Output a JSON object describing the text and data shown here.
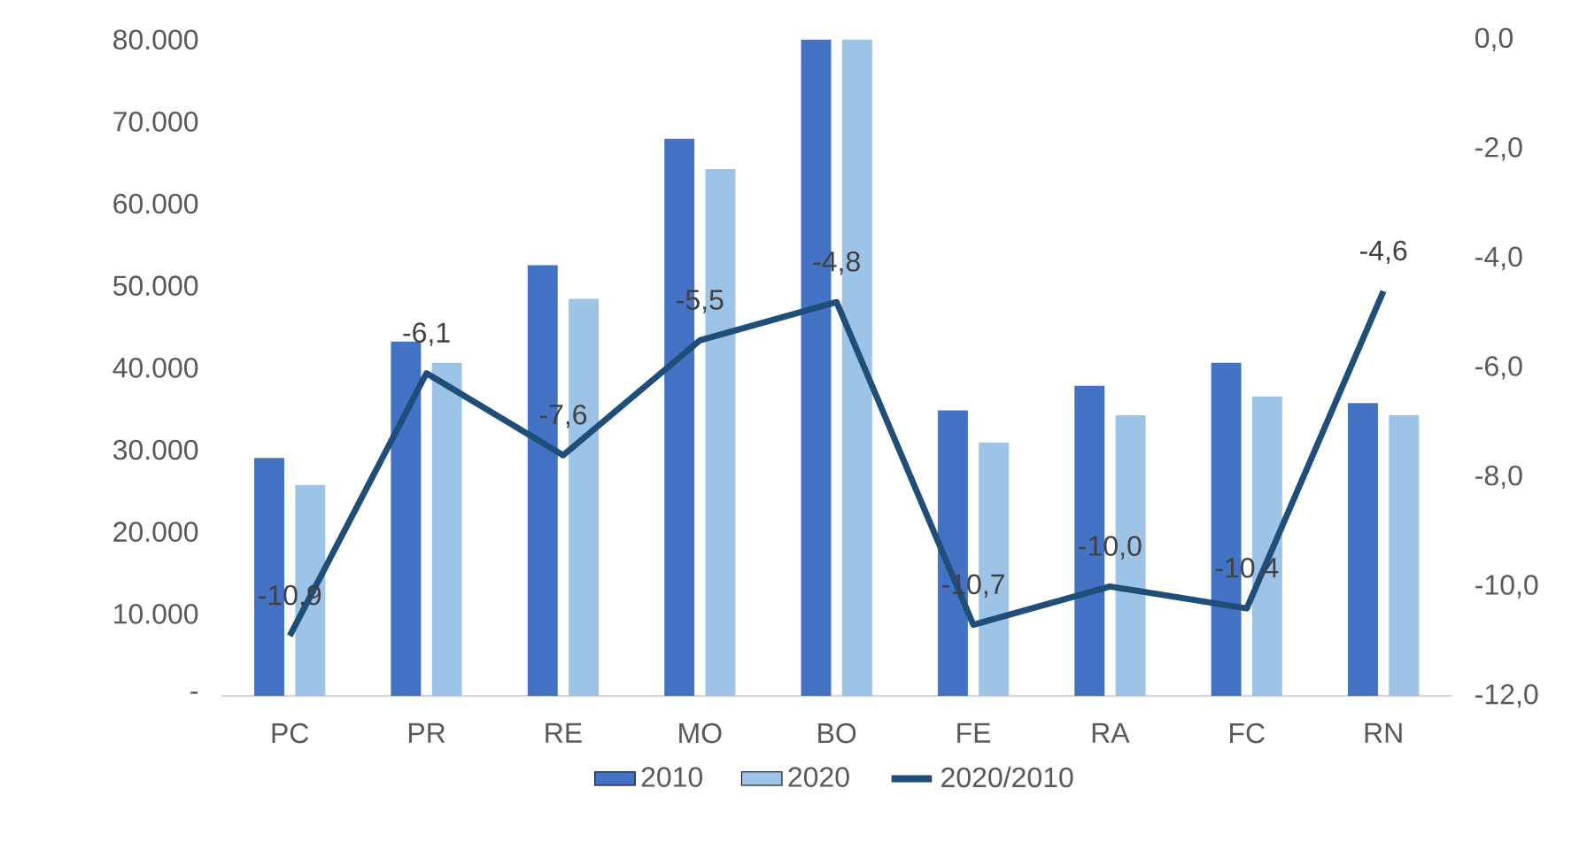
{
  "chart_data": {
    "type": "bar",
    "categories": [
      "PC",
      "PR",
      "RE",
      "MO",
      "BO",
      "FE",
      "RA",
      "FC",
      "RN"
    ],
    "series": [
      {
        "name": "2010",
        "color": "#4472c4",
        "values": [
          29000,
          43200,
          52500,
          67900,
          80000,
          34800,
          37800,
          40600,
          35700
        ]
      },
      {
        "name": "2020",
        "color": "#9dc3e6",
        "values": [
          25700,
          40600,
          48400,
          64200,
          80000,
          30900,
          34200,
          36500,
          34200
        ]
      },
      {
        "name": "2020/2010",
        "type": "line",
        "axis": "y2",
        "color": "#1f4e79",
        "values": [
          -10.9,
          -6.1,
          -7.6,
          -5.5,
          -4.8,
          -10.7,
          -10.0,
          -10.4,
          -4.6
        ],
        "value_labels": [
          "-10,9",
          "-6,1",
          "-7,6",
          "-5,5",
          "-4,8",
          "-10,7",
          "-10,0",
          "-10,4",
          "-4,6"
        ]
      }
    ],
    "ylim": [
      0,
      80000
    ],
    "yticks": [
      {
        "value": 0,
        "label": "-"
      },
      {
        "value": 10000,
        "label": "10.000"
      },
      {
        "value": 20000,
        "label": "20.000"
      },
      {
        "value": 30000,
        "label": "30.000"
      },
      {
        "value": 40000,
        "label": "40.000"
      },
      {
        "value": 50000,
        "label": "50.000"
      },
      {
        "value": 60000,
        "label": "60.000"
      },
      {
        "value": 70000,
        "label": "70.000"
      },
      {
        "value": 80000,
        "label": "80.000"
      }
    ],
    "y2lim": [
      -12,
      0
    ],
    "y2ticks": [
      {
        "value": -12,
        "label": "-12,0"
      },
      {
        "value": -10,
        "label": "-10,0"
      },
      {
        "value": -8,
        "label": "-8,0"
      },
      {
        "value": -6,
        "label": "-6,0"
      },
      {
        "value": -4,
        "label": "-4,0"
      },
      {
        "value": -2,
        "label": "-2,0"
      },
      {
        "value": 0,
        "label": "0,0"
      }
    ],
    "legend": "bottom"
  }
}
